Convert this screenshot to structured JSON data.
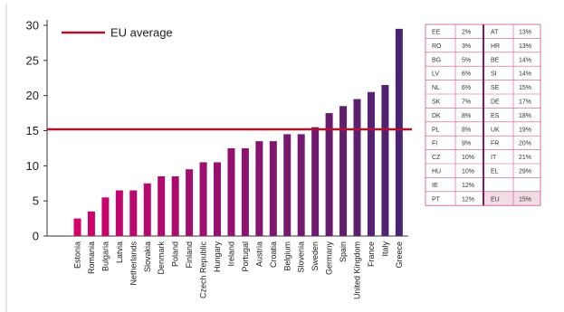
{
  "chart_data": {
    "type": "bar",
    "categories": [
      "Estonia",
      "Romania",
      "Bulgaria",
      "Latvia",
      "Netherlands",
      "Slovakia",
      "Denmark",
      "Poland",
      "Finland",
      "Czech Republic",
      "Hungary",
      "Ireland",
      "Portugal",
      "Austria",
      "Croatia",
      "Belgium",
      "Slovenia",
      "Sweden",
      "Germany",
      "Spain",
      "United Kingdom",
      "France",
      "Italy",
      "Greece"
    ],
    "values": [
      2.5,
      3.5,
      5.5,
      6.5,
      6.5,
      7.5,
      8.5,
      8.5,
      9.5,
      10.5,
      10.5,
      12.5,
      12.5,
      13.5,
      13.5,
      14.5,
      14.5,
      15.5,
      17.5,
      18.5,
      19.5,
      20.5,
      21.5,
      29.5
    ],
    "ylim": [
      0,
      30
    ],
    "yticks": [
      0,
      5,
      10,
      15,
      20,
      25,
      30
    ],
    "reference_line": {
      "label": "EU average",
      "value": 15.2,
      "color": "#b0122e"
    },
    "legend_position": "top-left",
    "grid": false,
    "bar_color_start": "#d4006c",
    "bar_color_end": "#4a2470"
  },
  "table": {
    "left": [
      {
        "code": "EE",
        "value": "2%"
      },
      {
        "code": "RO",
        "value": "3%"
      },
      {
        "code": "BG",
        "value": "5%"
      },
      {
        "code": "LV",
        "value": "6%"
      },
      {
        "code": "NL",
        "value": "6%"
      },
      {
        "code": "SK",
        "value": "7%"
      },
      {
        "code": "DK",
        "value": "8%"
      },
      {
        "code": "PL",
        "value": "8%"
      },
      {
        "code": "FI",
        "value": "9%"
      },
      {
        "code": "CZ",
        "value": "10%"
      },
      {
        "code": "HU",
        "value": "10%"
      },
      {
        "code": "IE",
        "value": "12%"
      },
      {
        "code": "PT",
        "value": "12%"
      }
    ],
    "right": [
      {
        "code": "AT",
        "value": "13%"
      },
      {
        "code": "HR",
        "value": "13%"
      },
      {
        "code": "BE",
        "value": "14%"
      },
      {
        "code": "SI",
        "value": "14%"
      },
      {
        "code": "SE",
        "value": "15%"
      },
      {
        "code": "DE",
        "value": "17%"
      },
      {
        "code": "ES",
        "value": "18%"
      },
      {
        "code": "UK",
        "value": "19%"
      },
      {
        "code": "FR",
        "value": "20%"
      },
      {
        "code": "IT",
        "value": "21%"
      },
      {
        "code": "EL",
        "value": "29%"
      },
      {
        "code": "",
        "value": ""
      },
      {
        "code": "EU",
        "value": "15%"
      }
    ],
    "border_color": "#c9558c",
    "highlight_fill": "#f3dbe6"
  }
}
